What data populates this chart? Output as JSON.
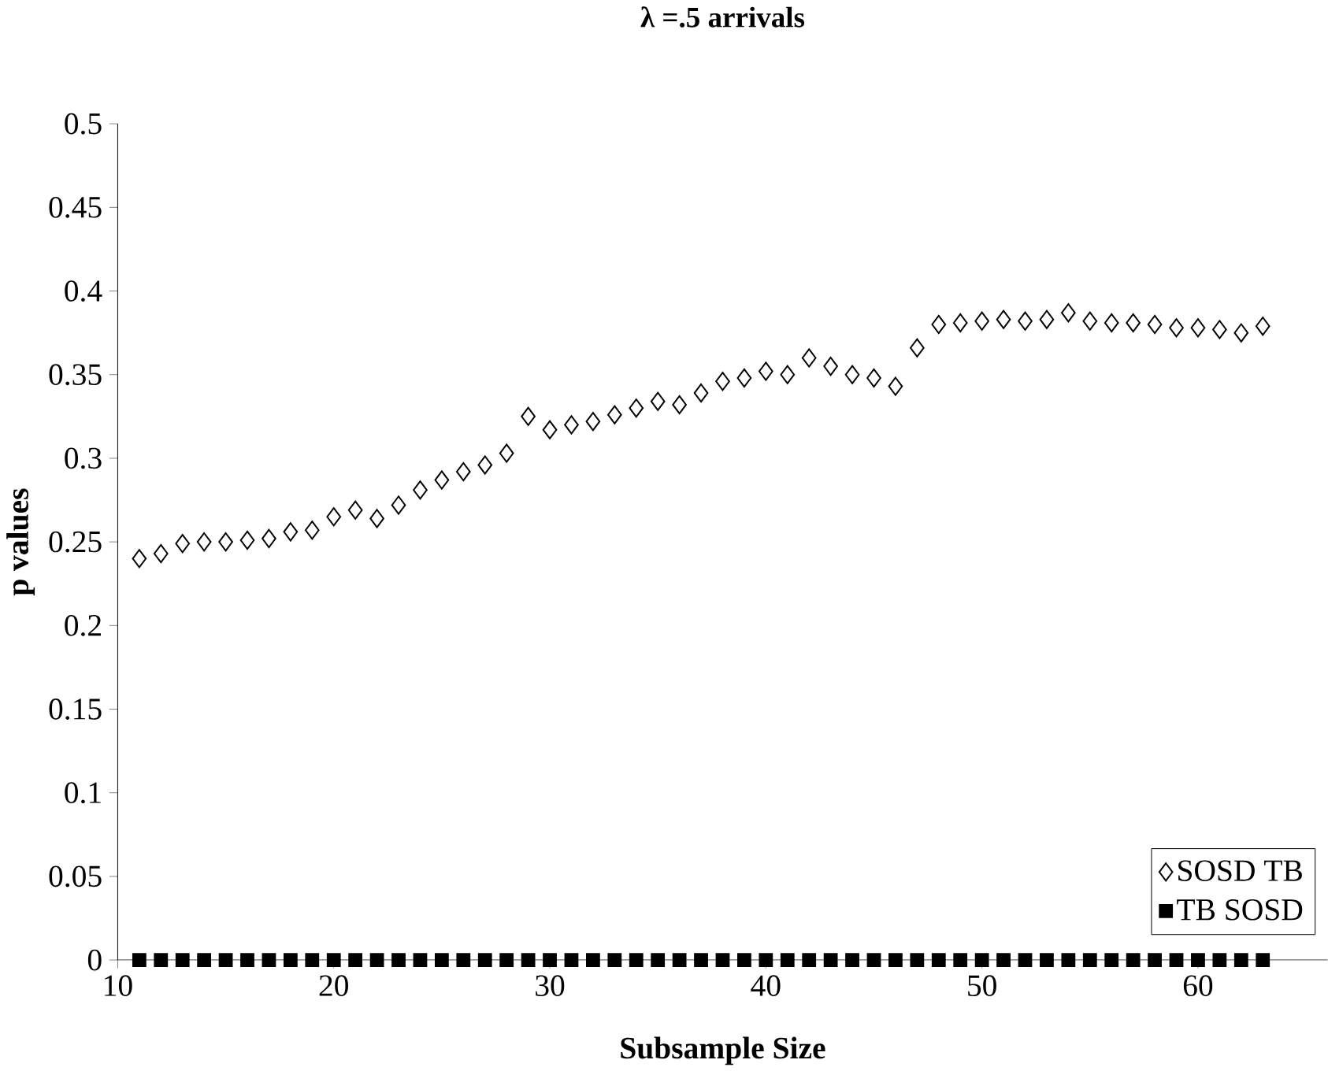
{
  "chart_data": {
    "type": "scatter",
    "title": "λ =.5 arrivals",
    "xlabel": "Subsample Size",
    "ylabel": "p values",
    "x": [
      11,
      12,
      13,
      14,
      15,
      16,
      17,
      18,
      19,
      20,
      21,
      22,
      23,
      24,
      25,
      26,
      27,
      28,
      29,
      30,
      31,
      32,
      33,
      34,
      35,
      36,
      37,
      38,
      39,
      40,
      41,
      42,
      43,
      44,
      45,
      46,
      47,
      48,
      49,
      50,
      51,
      52,
      53,
      54,
      55,
      56,
      57,
      58,
      59,
      60,
      61,
      62,
      63
    ],
    "series": [
      {
        "name": "SOSD TB",
        "color": "#000000",
        "marker": "diamond",
        "values": [
          0.24,
          0.243,
          0.249,
          0.25,
          0.25,
          0.251,
          0.252,
          0.256,
          0.257,
          0.265,
          0.269,
          0.264,
          0.272,
          0.281,
          0.287,
          0.292,
          0.296,
          0.303,
          0.325,
          0.317,
          0.32,
          0.322,
          0.326,
          0.33,
          0.334,
          0.332,
          0.339,
          0.346,
          0.348,
          0.352,
          0.35,
          0.36,
          0.355,
          0.35,
          0.348,
          0.343,
          0.366,
          0.38,
          0.381,
          0.382,
          0.383,
          0.382,
          0.383,
          0.387,
          0.382,
          0.381,
          0.381,
          0.38,
          0.378,
          0.378,
          0.377,
          0.375,
          0.379
        ]
      },
      {
        "name": "TB SOSD",
        "color": "#000000",
        "marker": "square",
        "values": [
          0,
          0,
          0,
          0,
          0,
          0,
          0,
          0,
          0,
          0,
          0,
          0,
          0,
          0,
          0,
          0,
          0,
          0,
          0,
          0,
          0,
          0,
          0,
          0,
          0,
          0,
          0,
          0,
          0,
          0,
          0,
          0,
          0,
          0,
          0,
          0,
          0,
          0,
          0,
          0,
          0,
          0,
          0,
          0,
          0,
          0,
          0,
          0,
          0,
          0,
          0,
          0,
          0
        ]
      }
    ],
    "xlim": [
      10,
      66
    ],
    "xticks": [
      10,
      20,
      30,
      40,
      50,
      60
    ],
    "ylim": [
      0,
      0.5
    ],
    "yticks": [
      0,
      0.05,
      0.1,
      0.15,
      0.2,
      0.25,
      0.3,
      0.35,
      0.4,
      0.45,
      0.5
    ],
    "grid": false,
    "legend": "bottom right"
  }
}
